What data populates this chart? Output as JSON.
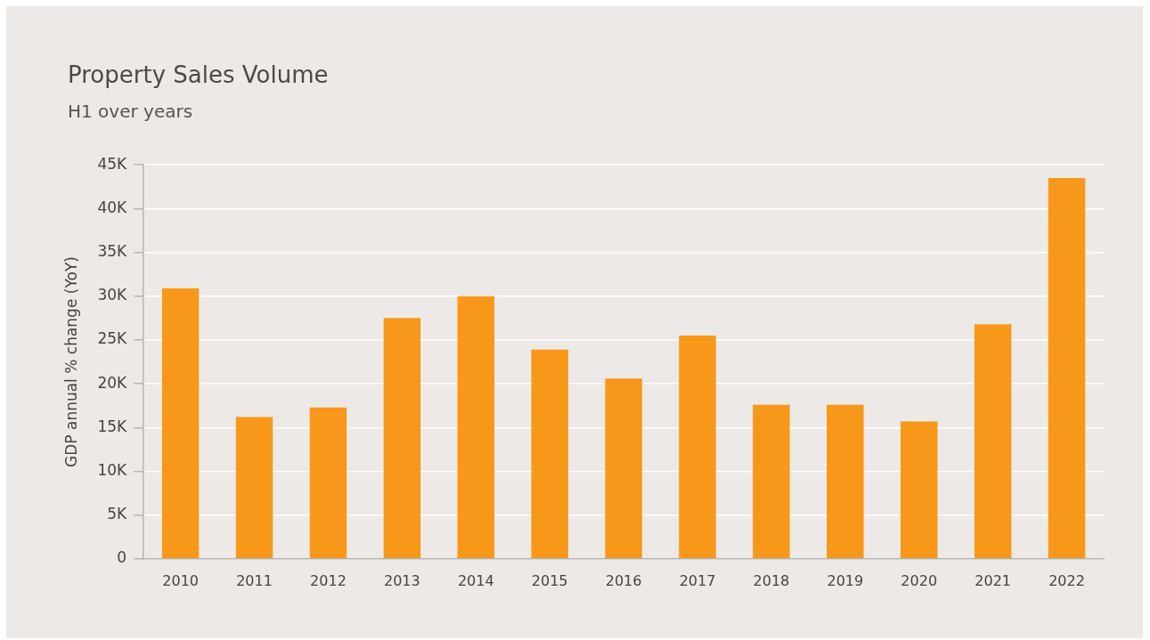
{
  "chart_data": {
    "type": "bar",
    "title": "Property Sales Volume",
    "subtitle": "H1 over years",
    "ylabel": "GDP annual % change (YoY)",
    "categories": [
      "2010",
      "2011",
      "2012",
      "2013",
      "2014",
      "2015",
      "2016",
      "2017",
      "2018",
      "2019",
      "2020",
      "2021",
      "2022"
    ],
    "values": [
      30900,
      16200,
      17300,
      27500,
      30000,
      23900,
      20600,
      25500,
      17600,
      17600,
      15700,
      26800,
      43500
    ],
    "color": "#f7981a",
    "ylim": [
      0,
      45000
    ],
    "yticks": [
      0,
      {
        "value": 5000,
        "label": "5K"
      },
      {
        "value": 10000,
        "label": "10K"
      },
      {
        "value": 15000,
        "label": "15K"
      },
      {
        "value": 20000,
        "label": "20K"
      },
      {
        "value": 25000,
        "label": "25K"
      },
      {
        "value": 30000,
        "label": "30K"
      },
      {
        "value": 35000,
        "label": "35K"
      },
      {
        "value": 40000,
        "label": "40K"
      },
      {
        "value": 45000,
        "label": "45K"
      }
    ],
    "grid": "y",
    "legend": false
  }
}
